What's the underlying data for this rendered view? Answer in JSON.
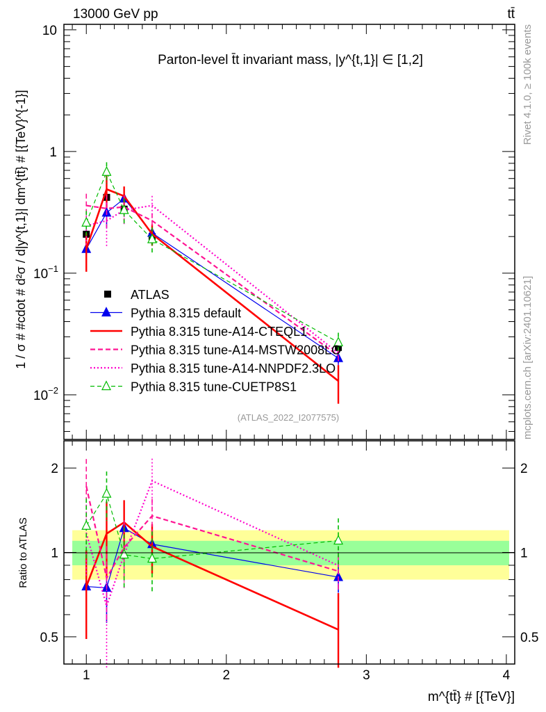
{
  "header": {
    "left": "13000 GeV pp",
    "right": "tt̄"
  },
  "side": {
    "rivet": "Rivet 4.1.0, ≥ 100k events",
    "mcplots": "mcplots.cern.ch [arXiv:2401.10621]"
  },
  "chart_data": [
    {
      "type": "line",
      "title": "Parton-level t̄t invariant mass, |y^{t,1}| ∈ [1,2]",
      "ylabel": "1 / σ # #cdot # d²σ / d|y^{t,1}| dm^{tt̄} # [{TeV}^{-1}]",
      "xlabel": "m^{tt̄} # [{TeV}]",
      "yscale": "log",
      "xlim": [
        0.84,
        4.06
      ],
      "ylim": [
        0.0043,
        11.1
      ],
      "yticks": [
        {
          "v": 10,
          "label": "10"
        },
        {
          "v": 1,
          "label": "1"
        },
        {
          "v": 0.1,
          "label": "10",
          "exp": "−1"
        },
        {
          "v": 0.01,
          "label": "10",
          "exp": "−2"
        }
      ],
      "watermark": "(ATLAS_2022_I2077575)",
      "legend_placement": "center-left",
      "x": [
        1.0,
        1.145,
        1.27,
        1.47,
        2.8
      ],
      "series": [
        {
          "name": "ATLAS",
          "color": "#000000",
          "style": "data",
          "values": [
            0.209,
            0.42,
            0.336,
            0.2,
            0.0245
          ],
          "rel_err": [
            0.1,
            0.1,
            0.1,
            0.1,
            0.1
          ]
        },
        {
          "name": "Pythia 8.315 default",
          "color": "#0000ee",
          "style": "solid-tri",
          "values": [
            0.158,
            0.314,
            0.41,
            0.214,
            0.02
          ],
          "rel_err": [
            0.3,
            0.25,
            0.15,
            0.12,
            0.12
          ]
        },
        {
          "name": "Pythia 8.315 tune-A14-CTEQL1",
          "color": "#ff0000",
          "style": "thick",
          "values": [
            0.158,
            0.49,
            0.43,
            0.21,
            0.013
          ],
          "rel_err": [
            0.35,
            0.3,
            0.2,
            0.2,
            0.35
          ]
        },
        {
          "name": "Pythia 8.315 tune-A14-MSTW2008LO",
          "color": "#ff1493",
          "style": "dashed",
          "values": [
            0.36,
            0.34,
            0.35,
            0.27,
            0.021
          ],
          "rel_err": [
            0.25,
            0.3,
            0.25,
            0.15,
            0.15
          ]
        },
        {
          "name": "Pythia 8.315 tune-A14-NNPDF2.3LO",
          "color": "#ff00cc",
          "style": "dotted",
          "values": [
            0.245,
            0.27,
            0.33,
            0.36,
            0.022
          ],
          "rel_err": [
            0.3,
            0.4,
            0.25,
            0.2,
            0.15
          ]
        },
        {
          "name": "Pythia 8.315 tune-CUETP8S1",
          "color": "#00bb00",
          "style": "dashed-otri",
          "values": [
            0.26,
            0.68,
            0.33,
            0.19,
            0.027
          ],
          "rel_err": [
            0.25,
            0.2,
            0.25,
            0.25,
            0.2
          ]
        }
      ]
    },
    {
      "type": "line",
      "ylabel": "Ratio to ATLAS",
      "yscale": "log",
      "ylim": [
        0.4,
        2.5
      ],
      "yticks": [
        {
          "v": 2,
          "label": "2"
        },
        {
          "v": 1,
          "label": "1"
        },
        {
          "v": 0.5,
          "label": "0.5"
        }
      ],
      "xticks": [
        {
          "v": 1,
          "label": "1"
        },
        {
          "v": 2,
          "label": "2"
        },
        {
          "v": 3,
          "label": "3"
        },
        {
          "v": 4,
          "label": "4"
        }
      ],
      "band_stat": 0.1,
      "band_total": 0.2
    }
  ]
}
